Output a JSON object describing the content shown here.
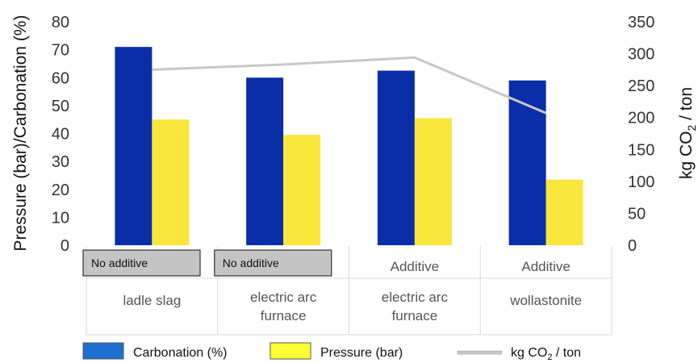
{
  "chart_data": {
    "type": "bar",
    "ylabel_left": "Pressure (bar)/Carbonation (%)",
    "ylabel_right_prefix": "kg CO",
    "ylabel_right_sub": "2",
    "ylabel_right_suffix": " / ton",
    "ylim_left": [
      0,
      80
    ],
    "ylim_right": [
      0,
      350
    ],
    "yticks_left": [
      "0",
      "10",
      "20",
      "30",
      "40",
      "50",
      "60",
      "70",
      "80"
    ],
    "yticks_right": [
      "0",
      "50",
      "100",
      "150",
      "200",
      "250",
      "300",
      "350"
    ],
    "categories": [
      {
        "top": "No additive",
        "top_boxed": true,
        "bottom": [
          "ladle slag"
        ]
      },
      {
        "top": "No additive",
        "top_boxed": true,
        "bottom": [
          "electric arc",
          "furnace"
        ]
      },
      {
        "top": "Additive",
        "top_boxed": false,
        "bottom": [
          "electric arc",
          "furnace"
        ]
      },
      {
        "top": "Additive",
        "top_boxed": false,
        "bottom": [
          "wollastonite"
        ]
      }
    ],
    "series": [
      {
        "name": "Carbonation (%)",
        "axis": "left",
        "kind": "bar",
        "color": "#0a2ea8",
        "values": [
          71,
          60,
          62.5,
          59
        ]
      },
      {
        "name": "Pressure (bar)",
        "axis": "left",
        "kind": "bar",
        "color": "#f9e63b",
        "values": [
          45,
          39.5,
          45.5,
          23.5
        ]
      },
      {
        "name_prefix": "kg CO",
        "name_sub": "2",
        "name_suffix": " / ton",
        "axis": "right",
        "kind": "line",
        "color": "#c8c8c8",
        "values": [
          275,
          283,
          294,
          207
        ]
      }
    ],
    "legend": {
      "placement": "bottom",
      "carbonation_color": "#1f6fd0",
      "pressure_color": "#ffff33"
    },
    "grid": false
  }
}
